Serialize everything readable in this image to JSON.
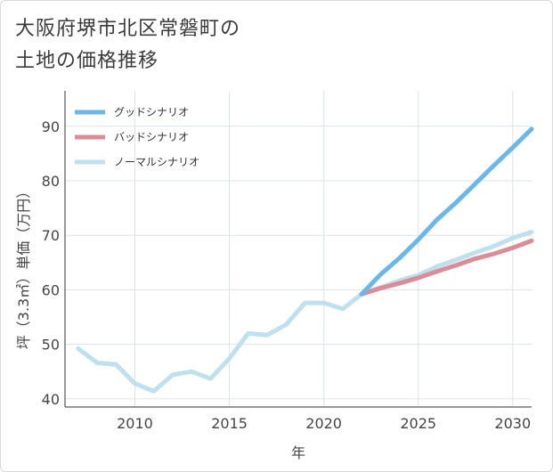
{
  "title_line1": "大阪府堺市北区常磐町の",
  "title_line2": "土地の価格推移",
  "chart_data": {
    "type": "line",
    "xlabel": "年",
    "ylabel": "坪（3.3㎡）単価（万円）",
    "xlim": [
      2006.3,
      2031
    ],
    "ylim": [
      38.5,
      96.5
    ],
    "xticks": [
      2010,
      2015,
      2020,
      2025,
      2030
    ],
    "yticks": [
      40,
      50,
      60,
      70,
      80,
      90
    ],
    "grid": true,
    "legend_position": "top-left",
    "series": [
      {
        "name": "グッドシナリオ",
        "color": "#6bb8e8",
        "x": [
          2022,
          2023,
          2024,
          2025,
          2026,
          2027,
          2028,
          2029,
          2030,
          2031
        ],
        "y": [
          59.2,
          62.8,
          65.8,
          69.2,
          72.9,
          76.0,
          79.4,
          82.8,
          86.1,
          89.5
        ]
      },
      {
        "name": "バッドシナリオ",
        "color": "#dc8c96",
        "x": [
          2022,
          2023,
          2024,
          2025,
          2026,
          2027,
          2028,
          2029,
          2030,
          2031
        ],
        "y": [
          59.2,
          60.3,
          61.2,
          62.2,
          63.4,
          64.5,
          65.7,
          66.6,
          67.7,
          69.0
        ]
      },
      {
        "name": "ノーマルシナリオ",
        "color": "#bfe0ee",
        "x": [
          2007,
          2008,
          2009,
          2010,
          2011,
          2012,
          2013,
          2014,
          2015,
          2016,
          2017,
          2018,
          2019,
          2020,
          2021,
          2022,
          2023,
          2024,
          2025,
          2026,
          2027,
          2028,
          2029,
          2030,
          2031
        ],
        "y": [
          49.2,
          46.6,
          46.3,
          42.8,
          41.4,
          44.4,
          45.0,
          43.7,
          47.4,
          52.0,
          51.7,
          53.6,
          57.6,
          57.6,
          56.5,
          59.2,
          60.4,
          61.7,
          62.7,
          64.3,
          65.5,
          66.8,
          68.0,
          69.5,
          70.6
        ]
      }
    ]
  }
}
